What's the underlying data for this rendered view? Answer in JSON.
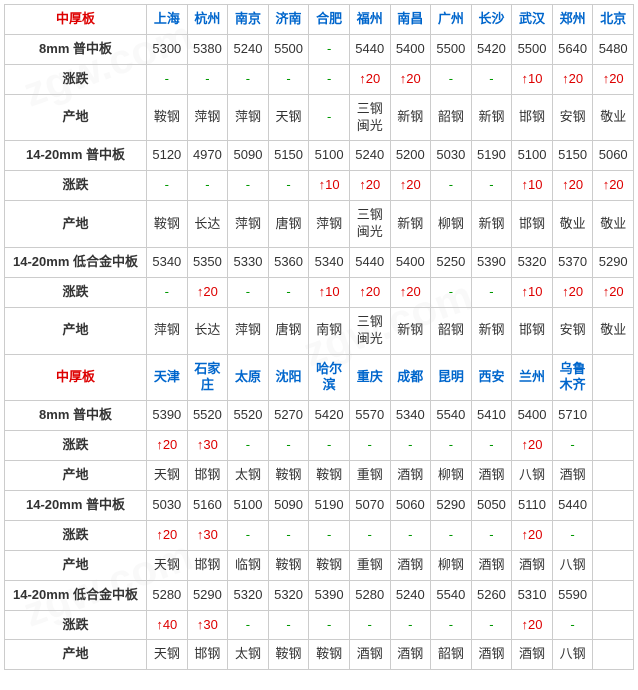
{
  "section1": {
    "title": "中厚板",
    "cities": [
      "上海",
      "杭州",
      "南京",
      "济南",
      "合肥",
      "福州",
      "南昌",
      "广州",
      "长沙",
      "武汉",
      "郑州",
      "北京"
    ],
    "rows": [
      {
        "label": "8mm 普中板",
        "vals": [
          "5300",
          "5380",
          "5240",
          "5500",
          "-",
          "5440",
          "5400",
          "5500",
          "5420",
          "5500",
          "5640",
          "5480"
        ]
      },
      {
        "label": "涨跌",
        "vals": [
          "-",
          "-",
          "-",
          "-",
          "-",
          "↑20",
          "↑20",
          "-",
          "-",
          "↑10",
          "↑20",
          "↑20"
        ]
      },
      {
        "label": "产地",
        "vals": [
          "鞍钢",
          "萍钢",
          "萍钢",
          "天钢",
          "-",
          "三钢闽光",
          "新钢",
          "韶钢",
          "新钢",
          "邯钢",
          "安钢",
          "敬业"
        ]
      },
      {
        "label": "14-20mm 普中板",
        "vals": [
          "5120",
          "4970",
          "5090",
          "5150",
          "5100",
          "5240",
          "5200",
          "5030",
          "5190",
          "5100",
          "5150",
          "5060"
        ]
      },
      {
        "label": "涨跌",
        "vals": [
          "-",
          "-",
          "-",
          "-",
          "↑10",
          "↑20",
          "↑20",
          "-",
          "-",
          "↑10",
          "↑20",
          "↑20"
        ]
      },
      {
        "label": "产地",
        "vals": [
          "鞍钢",
          "长达",
          "萍钢",
          "唐钢",
          "萍钢",
          "三钢闽光",
          "新钢",
          "柳钢",
          "新钢",
          "邯钢",
          "敬业",
          "敬业"
        ]
      },
      {
        "label": "14-20mm 低合金中板",
        "vals": [
          "5340",
          "5350",
          "5330",
          "5360",
          "5340",
          "5440",
          "5400",
          "5250",
          "5390",
          "5320",
          "5370",
          "5290"
        ]
      },
      {
        "label": "涨跌",
        "vals": [
          "-",
          "↑20",
          "-",
          "-",
          "↑10",
          "↑20",
          "↑20",
          "-",
          "-",
          "↑10",
          "↑20",
          "↑20"
        ]
      },
      {
        "label": "产地",
        "vals": [
          "萍钢",
          "长达",
          "萍钢",
          "唐钢",
          "南钢",
          "三钢闽光",
          "新钢",
          "韶钢",
          "新钢",
          "邯钢",
          "安钢",
          "敬业"
        ]
      }
    ]
  },
  "section2": {
    "title": "中厚板",
    "cities": [
      "天津",
      "石家庄",
      "太原",
      "沈阳",
      "哈尔滨",
      "重庆",
      "成都",
      "昆明",
      "西安",
      "兰州",
      "乌鲁木齐",
      ""
    ],
    "rows": [
      {
        "label": "8mm 普中板",
        "vals": [
          "5390",
          "5520",
          "5520",
          "5270",
          "5420",
          "5570",
          "5340",
          "5540",
          "5410",
          "5400",
          "5710",
          ""
        ]
      },
      {
        "label": "涨跌",
        "vals": [
          "↑20",
          "↑30",
          "-",
          "-",
          "-",
          "-",
          "-",
          "-",
          "-",
          "↑20",
          "-",
          ""
        ]
      },
      {
        "label": "产地",
        "vals": [
          "天钢",
          "邯钢",
          "太钢",
          "鞍钢",
          "鞍钢",
          "重钢",
          "酒钢",
          "柳钢",
          "酒钢",
          "八钢",
          "酒钢",
          ""
        ]
      },
      {
        "label": "14-20mm 普中板",
        "vals": [
          "5030",
          "5160",
          "5100",
          "5090",
          "5190",
          "5070",
          "5060",
          "5290",
          "5050",
          "5110",
          "5440",
          ""
        ]
      },
      {
        "label": "涨跌",
        "vals": [
          "↑20",
          "↑30",
          "-",
          "-",
          "-",
          "-",
          "-",
          "-",
          "-",
          "↑20",
          "-",
          ""
        ]
      },
      {
        "label": "产地",
        "vals": [
          "天钢",
          "邯钢",
          "临钢",
          "鞍钢",
          "鞍钢",
          "重钢",
          "酒钢",
          "柳钢",
          "酒钢",
          "酒钢",
          "八钢",
          ""
        ]
      },
      {
        "label": "14-20mm 低合金中板",
        "vals": [
          "5280",
          "5290",
          "5320",
          "5320",
          "5390",
          "5280",
          "5240",
          "5540",
          "5260",
          "5310",
          "5590",
          ""
        ]
      },
      {
        "label": "涨跌",
        "vals": [
          "↑40",
          "↑30",
          "-",
          "-",
          "-",
          "-",
          "-",
          "-",
          "-",
          "↑20",
          "-",
          ""
        ]
      },
      {
        "label": "产地",
        "vals": [
          "天钢",
          "邯钢",
          "太钢",
          "鞍钢",
          "鞍钢",
          "酒钢",
          "酒钢",
          "韶钢",
          "酒钢",
          "酒钢",
          "八钢",
          ""
        ]
      }
    ]
  }
}
